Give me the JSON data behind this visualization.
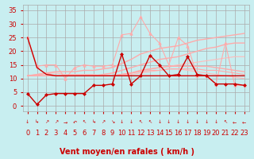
{
  "background_color": "#c8eef0",
  "grid_color": "#aaaaaa",
  "xlabel": "Vent moyen/en rafales ( km/h )",
  "xlabel_color": "#cc0000",
  "xlabel_fontsize": 7,
  "tick_color": "#cc0000",
  "tick_fontsize": 6,
  "ylim": [
    -2,
    37
  ],
  "xlim": [
    -0.5,
    23.5
  ],
  "yticks": [
    0,
    5,
    10,
    15,
    20,
    25,
    30,
    35
  ],
  "xticks": [
    0,
    1,
    2,
    3,
    4,
    5,
    6,
    7,
    8,
    9,
    10,
    11,
    12,
    13,
    14,
    15,
    16,
    17,
    18,
    19,
    20,
    21,
    22,
    23
  ],
  "lines": [
    {
      "x": [
        0,
        1,
        2,
        3,
        4,
        5,
        6,
        7,
        8,
        9,
        10,
        11,
        12,
        13,
        14,
        15,
        16,
        17,
        18,
        19,
        20,
        21,
        22,
        23
      ],
      "y": [
        25,
        14,
        11.5,
        11,
        11,
        11,
        11,
        11,
        11,
        11,
        11,
        11,
        11,
        11,
        11,
        11,
        11,
        11,
        11,
        11,
        11,
        11,
        11,
        11
      ],
      "color": "#cc0000",
      "lw": 1.0,
      "marker": null,
      "zorder": 5
    },
    {
      "x": [
        0,
        1,
        2,
        3,
        4,
        5,
        6,
        7,
        8,
        9,
        10,
        11,
        12,
        13,
        14,
        15,
        16,
        17,
        18,
        19,
        20,
        21,
        22,
        23
      ],
      "y": [
        4.5,
        0.5,
        4,
        4.5,
        4.5,
        4.5,
        4.5,
        7.5,
        7.5,
        8,
        19,
        8,
        11,
        18.5,
        15,
        11,
        11.5,
        18,
        11.5,
        11,
        8,
        8,
        8,
        7.5
      ],
      "color": "#cc0000",
      "lw": 1.0,
      "marker": "D",
      "markersize": 2.0,
      "zorder": 6
    },
    {
      "x": [
        0,
        1,
        2,
        3,
        4,
        5,
        6,
        7,
        8,
        9,
        10,
        11,
        12,
        13,
        14,
        15,
        16,
        17,
        18,
        19,
        20,
        21,
        22,
        23
      ],
      "y": [
        25,
        14.5,
        15,
        15,
        10,
        14,
        15,
        14.5,
        14.5,
        15,
        26,
        26.5,
        32.5,
        26.5,
        23,
        15,
        25,
        22,
        11,
        11,
        8,
        23,
        7.5,
        7.5
      ],
      "color": "#ffaaaa",
      "lw": 0.8,
      "marker": "^",
      "markersize": 2.5,
      "zorder": 4
    },
    {
      "x": [
        0,
        1,
        2,
        3,
        4,
        5,
        6,
        7,
        8,
        9,
        10,
        11,
        12,
        13,
        14,
        15,
        16,
        17,
        18,
        19,
        20,
        21,
        22,
        23
      ],
      "y": [
        11,
        11,
        12,
        11,
        11,
        11,
        11,
        11,
        11.5,
        12,
        13,
        14,
        15,
        16,
        17,
        17.5,
        18,
        19,
        20,
        21,
        21.5,
        22.5,
        23,
        23
      ],
      "color": "#ffaaaa",
      "lw": 1.0,
      "marker": null,
      "zorder": 3
    },
    {
      "x": [
        0,
        1,
        2,
        3,
        4,
        5,
        6,
        7,
        8,
        9,
        10,
        11,
        12,
        13,
        14,
        15,
        16,
        17,
        18,
        19,
        20,
        21,
        22,
        23
      ],
      "y": [
        11,
        11,
        11,
        11,
        11,
        11,
        11,
        11,
        11,
        11,
        11.5,
        12,
        13,
        13.5,
        14,
        14.5,
        14.5,
        14.5,
        14.5,
        14.5,
        14,
        13.5,
        13,
        12.5
      ],
      "color": "#ffaaaa",
      "lw": 1.0,
      "marker": null,
      "zorder": 3
    },
    {
      "x": [
        0,
        1,
        2,
        3,
        4,
        5,
        6,
        7,
        8,
        9,
        10,
        11,
        12,
        13,
        14,
        15,
        16,
        17,
        18,
        19,
        20,
        21,
        22,
        23
      ],
      "y": [
        11,
        11,
        11,
        11,
        11,
        11,
        11,
        11,
        11,
        11,
        11.5,
        12,
        12.5,
        13,
        13,
        13.5,
        13.5,
        13.5,
        13.5,
        13,
        13,
        12.5,
        12,
        11.5
      ],
      "color": "#ffaaaa",
      "lw": 0.8,
      "marker": null,
      "zorder": 3
    },
    {
      "x": [
        0,
        1,
        2,
        3,
        4,
        5,
        6,
        7,
        8,
        9,
        10,
        11,
        12,
        13,
        14,
        15,
        16,
        17,
        18,
        19,
        20,
        21,
        22,
        23
      ],
      "y": [
        11,
        11.5,
        12,
        12,
        11.5,
        11.5,
        11.5,
        11.5,
        11,
        11,
        11.5,
        12,
        13,
        13.5,
        14,
        14.5,
        15,
        15.5,
        16,
        16.5,
        17,
        17.5,
        18,
        18
      ],
      "color": "#ffbbbb",
      "lw": 0.8,
      "marker": null,
      "zorder": 2
    },
    {
      "x": [
        0,
        1,
        2,
        3,
        4,
        5,
        6,
        7,
        8,
        9,
        10,
        11,
        12,
        13,
        14,
        15,
        16,
        17,
        18,
        19,
        20,
        21,
        22,
        23
      ],
      "y": [
        11,
        11,
        11,
        11,
        11,
        11,
        11,
        11,
        11,
        11,
        11,
        11.5,
        12,
        12.5,
        13,
        13.5,
        13.5,
        13,
        12.5,
        12,
        11.5,
        11,
        10.5,
        10
      ],
      "color": "#ffbbbb",
      "lw": 0.8,
      "marker": null,
      "zorder": 2
    },
    {
      "x": [
        0,
        1,
        2,
        3,
        4,
        5,
        6,
        7,
        8,
        9,
        10,
        11,
        12,
        13,
        14,
        15,
        16,
        17,
        18,
        19,
        20,
        21,
        22,
        23
      ],
      "y": [
        11,
        11.5,
        12,
        12.5,
        12.5,
        12.5,
        13,
        13,
        13.5,
        14,
        15.5,
        17,
        19,
        20,
        21,
        21.5,
        22,
        23,
        24,
        24.5,
        25,
        25.5,
        26,
        26.5
      ],
      "color": "#ffaaaa",
      "lw": 1.0,
      "marker": null,
      "zorder": 3
    }
  ],
  "wind_symbols": [
    "↓",
    "↳",
    "↗",
    "↗",
    "→",
    "↶",
    "↖",
    "↳",
    "↗",
    "↘",
    "↓",
    "↓",
    "↖",
    "↖",
    "↓",
    "↓",
    "↓",
    "↓",
    "↓",
    "↓",
    "↓",
    "↖",
    "←",
    "←"
  ]
}
